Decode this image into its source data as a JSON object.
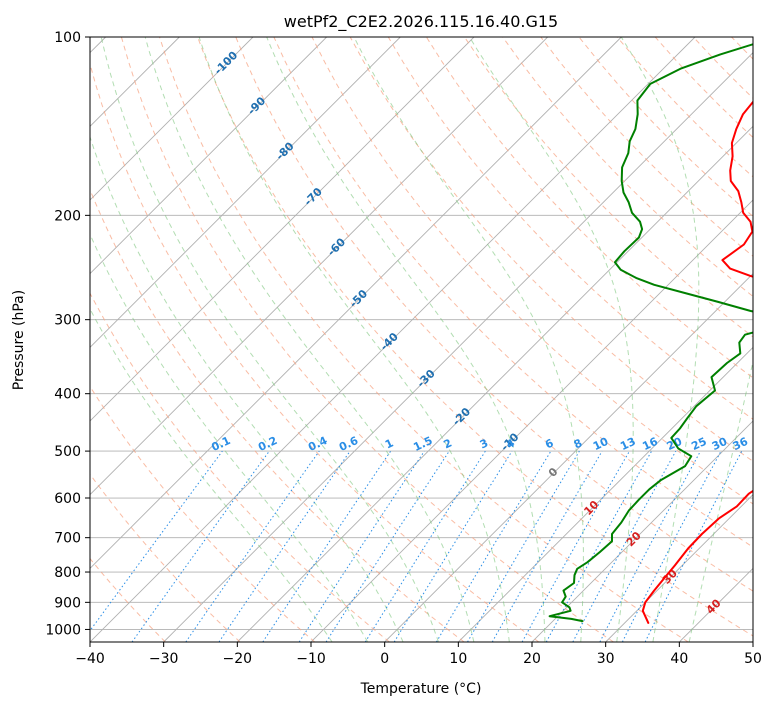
{
  "chart_data": {
    "type": "line",
    "title": "wetPf2_C2E2.2026.115.16.40.G15",
    "xlabel": "Temperature (°C)",
    "ylabel": "Pressure (hPa)",
    "xlim": [
      -40,
      50
    ],
    "ylim": [
      1050,
      100
    ],
    "y_scale": "log",
    "x_ticks": [
      -40,
      -30,
      -20,
      -10,
      0,
      10,
      20,
      30,
      40,
      50
    ],
    "y_ticks": [
      100,
      200,
      300,
      400,
      500,
      600,
      700,
      800,
      900,
      1000
    ],
    "grid": true,
    "legend": "none",
    "series": [
      {
        "color": "#ff0000",
        "points": [
          [
            33.2,
            975
          ],
          [
            30.8,
            930
          ],
          [
            30.0,
            900
          ],
          [
            29.6,
            860
          ],
          [
            29.3,
            820
          ],
          [
            29.0,
            780
          ],
          [
            28.5,
            730
          ],
          [
            28.4,
            690
          ],
          [
            28.6,
            650
          ],
          [
            29.4,
            620
          ],
          [
            29.3,
            590
          ],
          [
            30.3,
            560
          ],
          [
            31.4,
            530
          ],
          [
            32.7,
            490
          ],
          [
            33.3,
            470
          ],
          [
            33.7,
            450
          ],
          [
            32.7,
            420
          ],
          [
            32.4,
            390
          ],
          [
            31.8,
            370
          ],
          [
            30.6,
            355
          ],
          [
            29.5,
            345
          ],
          [
            28.4,
            325
          ],
          [
            26.9,
            312
          ],
          [
            24.9,
            305
          ],
          [
            20.0,
            290
          ],
          [
            14.4,
            280
          ],
          [
            9.3,
            270
          ],
          [
            4.5,
            261
          ],
          [
            -0.1,
            253
          ],
          [
            -3.8,
            246
          ],
          [
            -6.0,
            238
          ],
          [
            -5.2,
            224
          ],
          [
            -5.8,
            213
          ],
          [
            -7.4,
            205
          ],
          [
            -9.6,
            198
          ],
          [
            -11.3,
            190
          ],
          [
            -13.2,
            182
          ],
          [
            -15.6,
            175
          ],
          [
            -17.1,
            168
          ],
          [
            -18.7,
            159
          ],
          [
            -20.6,
            151
          ],
          [
            -21.9,
            143
          ],
          [
            -23.0,
            135
          ],
          [
            -23.4,
            127
          ],
          [
            -21.1,
            119
          ],
          [
            -16.1,
            112
          ],
          [
            -11.0,
            106
          ],
          [
            -7.0,
            101
          ],
          [
            -6.0,
            100
          ]
        ]
      },
      {
        "color": "#008000",
        "points": [
          [
            24.0,
            968
          ],
          [
            22.2,
            960
          ],
          [
            18.9,
            950
          ],
          [
            21.0,
            930
          ],
          [
            20.4,
            918
          ],
          [
            18.7,
            900
          ],
          [
            18.4,
            880
          ],
          [
            17.3,
            860
          ],
          [
            17.7,
            835
          ],
          [
            16.7,
            810
          ],
          [
            16.2,
            790
          ],
          [
            16.7,
            770
          ],
          [
            17.0,
            740
          ],
          [
            17.2,
            710
          ],
          [
            16.2,
            690
          ],
          [
            15.9,
            660
          ],
          [
            15.3,
            630
          ],
          [
            15.2,
            605
          ],
          [
            15.2,
            580
          ],
          [
            15.5,
            560
          ],
          [
            16.9,
            530
          ],
          [
            16.4,
            510
          ],
          [
            13.6,
            495
          ],
          [
            11.2,
            475
          ],
          [
            11.1,
            458
          ],
          [
            10.7,
            440
          ],
          [
            10.3,
            420
          ],
          [
            10.7,
            395
          ],
          [
            8.4,
            375
          ],
          [
            8.6,
            355
          ],
          [
            9.1,
            342
          ],
          [
            7.5,
            328
          ],
          [
            7.2,
            318
          ],
          [
            10.2,
            308
          ],
          [
            11.2,
            300
          ],
          [
            4.7,
            290
          ],
          [
            -0.9,
            280
          ],
          [
            -6.3,
            271
          ],
          [
            -11.9,
            262
          ],
          [
            -15.3,
            255
          ],
          [
            -18.5,
            247
          ],
          [
            -20.3,
            240
          ],
          [
            -20.5,
            230
          ],
          [
            -20.4,
            218
          ],
          [
            -21.1,
            211
          ],
          [
            -22.4,
            205
          ],
          [
            -24.7,
            198
          ],
          [
            -26.6,
            190
          ],
          [
            -28.6,
            183
          ],
          [
            -30.4,
            175
          ],
          [
            -32.2,
            166
          ],
          [
            -33.3,
            157
          ],
          [
            -34.7,
            150
          ],
          [
            -35.6,
            143
          ],
          [
            -37.3,
            135
          ],
          [
            -39.2,
            128
          ],
          [
            -39.7,
            120
          ],
          [
            -37.6,
            113
          ],
          [
            -34.2,
            107
          ],
          [
            -30.5,
            102
          ],
          [
            -29.0,
            100
          ]
        ]
      }
    ],
    "dry_adiabat_labels": [
      "-100",
      "-90",
      "-80",
      "-70",
      "-60",
      "-50",
      "-40",
      "-30",
      "-20",
      "-10",
      "0",
      "10",
      "20",
      "30",
      "40"
    ],
    "mixing_ratio_labels": [
      "0.1",
      "0.2",
      "0.4",
      "0.6",
      "1",
      "1.5",
      "2",
      "3",
      "4",
      "6",
      "8",
      "10",
      "13",
      "16",
      "20",
      "25",
      "30",
      "36"
    ]
  }
}
